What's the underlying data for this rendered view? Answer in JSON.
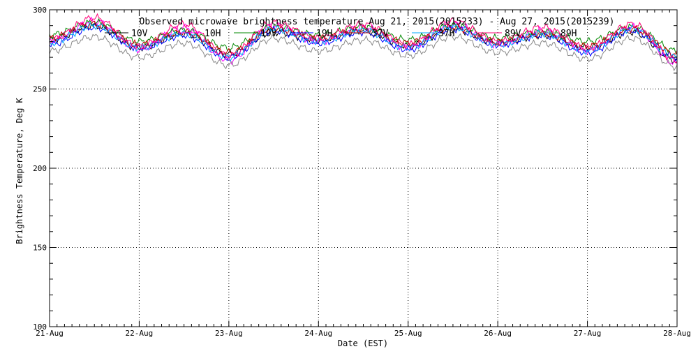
{
  "chart_data": {
    "type": "line",
    "title": "Observed microwave brightness temperature Aug 21, 2015(2015233) - Aug 27, 2015(2015239)",
    "xlabel": "Date (EST)",
    "ylabel": "Brightness Temperature, Deg K",
    "xlim": [
      "2015-08-21",
      "2015-08-28"
    ],
    "ylim": [
      100,
      300
    ],
    "x_ticks": [
      "21-Aug",
      "22-Aug",
      "23-Aug",
      "24-Aug",
      "25-Aug",
      "26-Aug",
      "27-Aug",
      "28-Aug"
    ],
    "y_ticks": [
      100,
      150,
      200,
      250,
      300
    ],
    "grid": true,
    "legend_placement": "top",
    "x": [
      "2015-08-21",
      "2015-08-21 12:00",
      "2015-08-22",
      "2015-08-22 12:00",
      "2015-08-23",
      "2015-08-23 12:00",
      "2015-08-24",
      "2015-08-24 12:00",
      "2015-08-25",
      "2015-08-25 12:00",
      "2015-08-26",
      "2015-08-26 12:00",
      "2015-08-27",
      "2015-08-27 12:00",
      "2015-08-28"
    ],
    "series": [
      {
        "name": "10V",
        "color": "#000000",
        "values": [
          281,
          290,
          276,
          285,
          272,
          286,
          281,
          287,
          277,
          288,
          279,
          284,
          276,
          286,
          268
        ]
      },
      {
        "name": "10H",
        "color": "#ff00ff",
        "values": [
          280,
          293,
          275,
          289,
          268,
          290,
          280,
          289,
          276,
          291,
          278,
          287,
          274,
          289,
          266
        ]
      },
      {
        "name": "19V",
        "color": "#008800",
        "values": [
          284,
          292,
          280,
          287,
          276,
          289,
          284,
          289,
          281,
          290,
          282,
          286,
          280,
          289,
          274
        ]
      },
      {
        "name": "19H",
        "color": "#0000ff",
        "values": [
          278,
          289,
          276,
          284,
          270,
          287,
          279,
          286,
          275,
          288,
          278,
          284,
          273,
          287,
          270
        ]
      },
      {
        "name": "37V",
        "color": "#cc0000",
        "values": [
          282,
          291,
          278,
          286,
          273,
          288,
          282,
          288,
          279,
          289,
          280,
          285,
          277,
          288,
          272
        ]
      },
      {
        "name": "37H",
        "color": "#00aaff",
        "values": [
          279,
          290,
          276,
          285,
          270,
          288,
          280,
          287,
          276,
          289,
          278,
          285,
          274,
          288,
          270
        ]
      },
      {
        "name": "89V",
        "color": "#ff0077",
        "values": [
          281,
          295,
          277,
          291,
          271,
          292,
          282,
          291,
          278,
          293,
          280,
          289,
          276,
          291,
          268
        ]
      },
      {
        "name": "89H",
        "color": "#888888",
        "values": [
          274,
          283,
          270,
          279,
          265,
          282,
          274,
          281,
          271,
          283,
          273,
          279,
          269,
          282,
          264
        ]
      }
    ]
  }
}
